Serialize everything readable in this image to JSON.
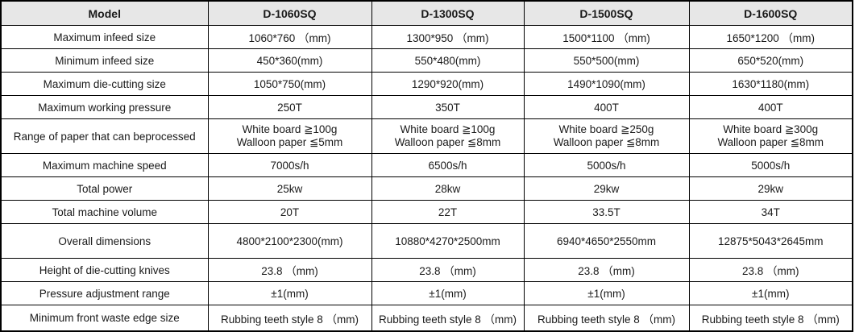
{
  "table": {
    "header": [
      "Model",
      "D-1060SQ",
      "D-1300SQ",
      "D-1500SQ",
      "D-1600SQ"
    ],
    "rows": [
      {
        "label": "Maximum infeed size",
        "values": [
          "1060*760 （mm)",
          "1300*950 （mm)",
          "1500*1100 （mm)",
          "1650*1200 （mm)"
        ]
      },
      {
        "label": "Minimum infeed size",
        "values": [
          "450*360(mm)",
          "550*480(mm)",
          "550*500(mm)",
          "650*520(mm)"
        ]
      },
      {
        "label": "Maximum die-cutting size",
        "values": [
          "1050*750(mm)",
          "1290*920(mm)",
          "1490*1090(mm)",
          "1630*1180(mm)"
        ]
      },
      {
        "label": "Maximum working pressure",
        "values": [
          "250T",
          "350T",
          "400T",
          "400T"
        ]
      },
      {
        "label": "Range of paper that can beprocessed",
        "values": [
          "White board ≧100g\nWalloon paper ≦5mm",
          "White board ≧100g\nWalloon paper ≦8mm",
          "White board ≧250g\nWalloon paper ≦8mm",
          "White board ≧300g\nWalloon paper ≦8mm"
        ]
      },
      {
        "label": "Maximum machine speed",
        "values": [
          "7000s/h",
          "6500s/h",
          "5000s/h",
          "5000s/h"
        ]
      },
      {
        "label": "Total power",
        "values": [
          "25kw",
          "28kw",
          "29kw",
          "29kw"
        ]
      },
      {
        "label": "Total machine volume",
        "values": [
          "20T",
          "22T",
          "33.5T",
          "34T"
        ]
      },
      {
        "label": "Overall dimensions",
        "values": [
          "4800*2100*2300(mm)",
          "10880*4270*2500mm",
          "6940*4650*2550mm",
          "12875*5043*2645mm"
        ]
      },
      {
        "label": "Height of die-cutting knives",
        "values": [
          "23.8 （mm)",
          "23.8 （mm)",
          "23.8 （mm)",
          "23.8 （mm)"
        ]
      },
      {
        "label": "Pressure adjustment range",
        "values": [
          "±1(mm)",
          "±1(mm)",
          "±1(mm)",
          "±1(mm)"
        ]
      },
      {
        "label": "Minimum front waste edge size",
        "values": [
          "Rubbing teeth style 8 （mm)",
          "Rubbing teeth style 8 （mm)",
          "Rubbing teeth style 8 （mm)",
          "Rubbing teeth style 8 （mm)"
        ]
      }
    ]
  },
  "colors": {
    "header_bg": "#e7e7e7",
    "border": "#000000",
    "text": "#1a1a1a",
    "cell_bg": "#ffffff"
  }
}
